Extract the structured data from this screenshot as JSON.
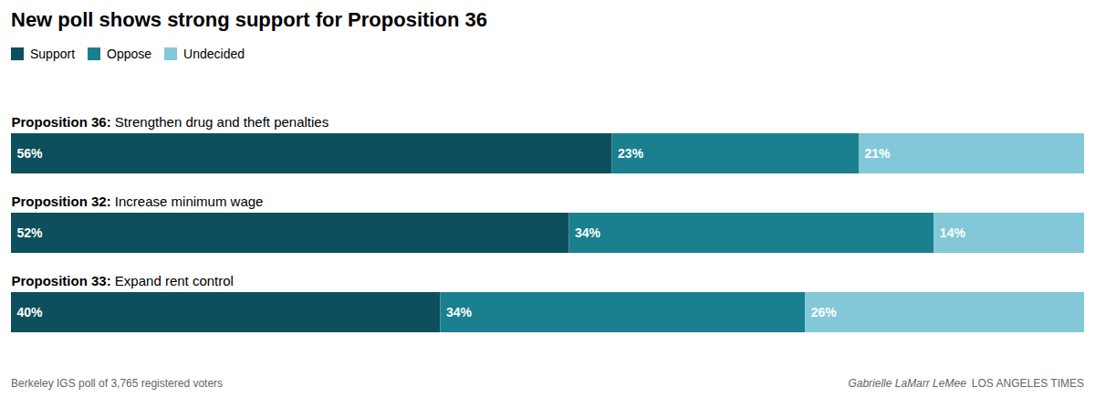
{
  "chart_data": {
    "type": "bar",
    "title": "New poll shows strong support for Proposition 36",
    "orientation": "horizontal",
    "stacked": true,
    "categories": [
      "Proposition 36: Strengthen drug and theft penalties",
      "Proposition 32: Increase minimum wage",
      "Proposition 33: Expand rent control"
    ],
    "series": [
      {
        "name": "Support",
        "color": "#0d4f5c",
        "values": [
          56,
          52,
          40
        ],
        "value_labels": [
          "56%",
          "52%",
          "40%"
        ]
      },
      {
        "name": "Oppose",
        "color": "#1a7f8e",
        "values": [
          23,
          34,
          34
        ],
        "value_labels": [
          "23%",
          "34%",
          "34%"
        ]
      },
      {
        "name": "Undecided",
        "color": "#82c8d8",
        "values": [
          21,
          14,
          26
        ],
        "value_labels": [
          "21%",
          "14%",
          "26%"
        ]
      }
    ],
    "xlim": [
      0,
      100
    ],
    "data_labels": true,
    "tick_labels": false,
    "grid": false,
    "legend": "upper left",
    "annotations": [
      "Berkeley IGS poll of 3,765 registered voters",
      "Gabrielle LaMarr LeMee",
      "LOS ANGELES TIMES"
    ]
  }
}
